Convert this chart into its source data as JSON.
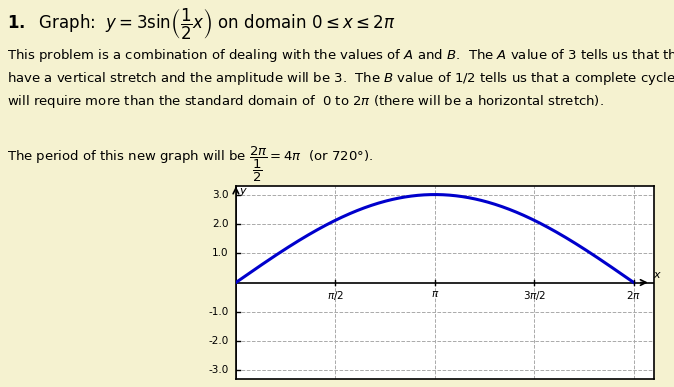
{
  "background_color": "#f5f2d0",
  "title_text": "1.  Graph:  $y = 3\\sin\\left(\\dfrac{1}{2}x\\right)$ on domain $0 \\leq x \\leq 2\\pi$",
  "body_text": "This problem is a combination of dealing with the values of $A$ and $B$.  The $A$ value of 3 tells us that the graph will\nhave a vertical stretch and the amplitude will be 3.  The $B$ value of 1/2 tells us that a complete cycle of the graph\nwill require more than the standard domain of  0 to $2\\pi$ (there will be a horizontal stretch).",
  "period_text": "The period of this new graph will be $\\dfrac{2\\pi}{\\dfrac{1}{2}} = 4\\pi$  (or 720°).",
  "curve_color": "#0000cc",
  "grid_color": "#aaaaaa",
  "axis_color": "#000000",
  "xlim": [
    0,
    6.6
  ],
  "ylim": [
    -3.3,
    3.3
  ],
  "x_ticks": [
    1.5707963,
    3.1415926,
    4.7123889,
    6.2831853
  ],
  "x_tick_labels": [
    "$\\pi/2$",
    "$\\pi$",
    "$3\\pi/2$",
    "$2\\pi$"
  ],
  "y_ticks": [
    -3.0,
    -2.0,
    -1.0,
    1.0,
    2.0,
    3.0
  ],
  "y_tick_labels": [
    "-3.0",
    "-2.0",
    "-1.0",
    "1.0",
    "2.0",
    "3.0"
  ],
  "plot_bg": "#ffffff",
  "curve_linewidth": 2.2,
  "fig_width": 6.74,
  "fig_height": 3.87
}
